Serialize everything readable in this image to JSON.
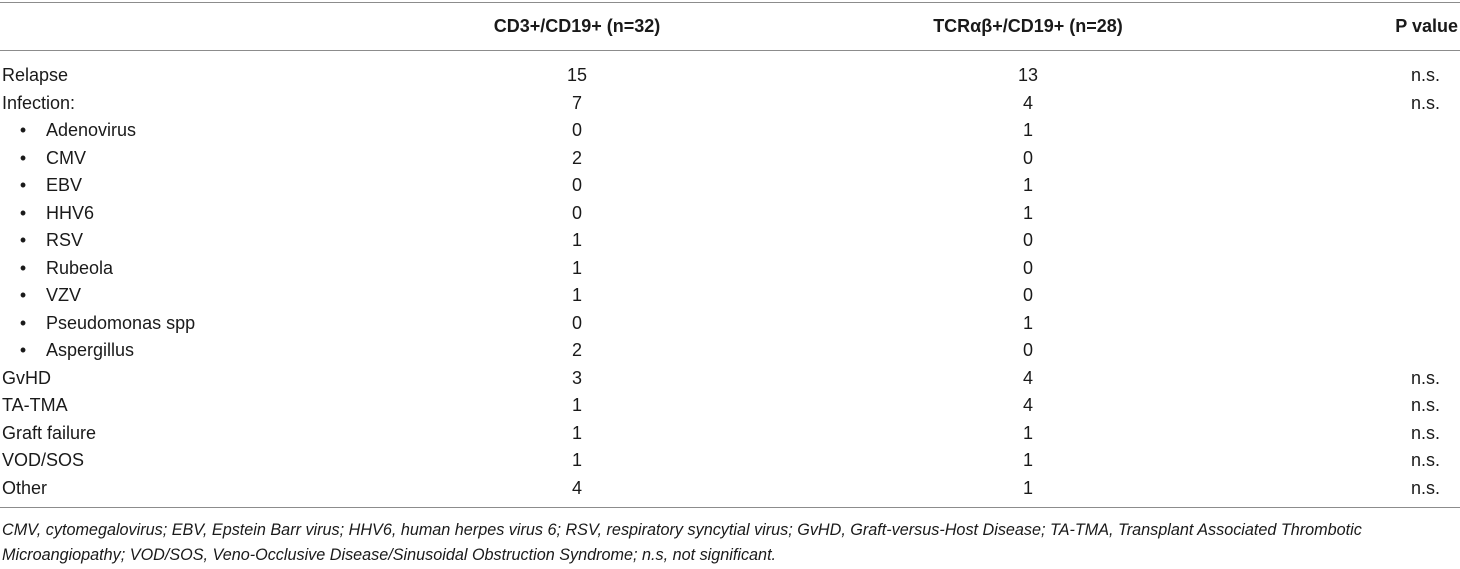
{
  "table": {
    "headers": [
      "",
      "CD3+/CD19+ (n=32)",
      "TCRαβ+/CD19+ (n=28)",
      "P value"
    ],
    "rows": [
      {
        "label": "Relapse",
        "sub": false,
        "cd3": "15",
        "tcr": "13",
        "p": "n.s."
      },
      {
        "label": "Infection:",
        "sub": false,
        "cd3": "7",
        "tcr": "4",
        "p": "n.s."
      },
      {
        "label": "Adenovirus",
        "sub": true,
        "cd3": "0",
        "tcr": "1",
        "p": ""
      },
      {
        "label": "CMV",
        "sub": true,
        "cd3": "2",
        "tcr": "0",
        "p": ""
      },
      {
        "label": "EBV",
        "sub": true,
        "cd3": "0",
        "tcr": "1",
        "p": ""
      },
      {
        "label": "HHV6",
        "sub": true,
        "cd3": "0",
        "tcr": "1",
        "p": ""
      },
      {
        "label": "RSV",
        "sub": true,
        "cd3": "1",
        "tcr": "0",
        "p": ""
      },
      {
        "label": "Rubeola",
        "sub": true,
        "cd3": "1",
        "tcr": "0",
        "p": ""
      },
      {
        "label": "VZV",
        "sub": true,
        "cd3": "1",
        "tcr": "0",
        "p": ""
      },
      {
        "label": "Pseudomonas spp",
        "sub": true,
        "cd3": "0",
        "tcr": "1",
        "p": ""
      },
      {
        "label": "Aspergillus",
        "sub": true,
        "cd3": "2",
        "tcr": "0",
        "p": ""
      },
      {
        "label": "GvHD",
        "sub": false,
        "cd3": "3",
        "tcr": "4",
        "p": "n.s."
      },
      {
        "label": "TA-TMA",
        "sub": false,
        "cd3": "1",
        "tcr": "4",
        "p": "n.s."
      },
      {
        "label": "Graft failure",
        "sub": false,
        "cd3": "1",
        "tcr": "1",
        "p": "n.s."
      },
      {
        "label": "VOD/SOS",
        "sub": false,
        "cd3": "1",
        "tcr": "1",
        "p": "n.s."
      },
      {
        "label": "Other",
        "sub": false,
        "cd3": "4",
        "tcr": "1",
        "p": "n.s."
      }
    ],
    "bullet_glyph": "•"
  },
  "footnote": "CMV, cytomegalovirus; EBV, Epstein Barr virus; HHV6, human herpes virus 6; RSV, respiratory syncytial virus; GvHD, Graft-versus-Host Disease; TA-TMA, Transplant Associated Thrombotic Microangiopathy; VOD/SOS, Veno-Occlusive Disease/Sinusoidal Obstruction Syndrome; n.s, not significant."
}
